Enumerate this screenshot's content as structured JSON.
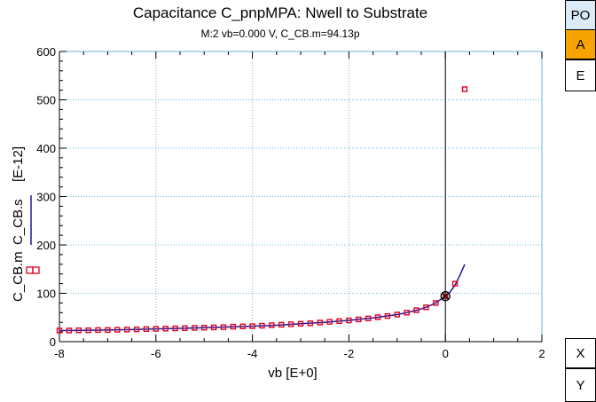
{
  "side_buttons": {
    "po": "PO",
    "a": "A",
    "e": "E",
    "x": "X",
    "y": "Y"
  },
  "colors": {
    "grid": "#6cb4dc",
    "measured": "#e00020",
    "simulated": "#1a1aa0",
    "po_bg": "#dbeaf7",
    "a_bg": "#f7a400"
  },
  "chart_data": {
    "type": "scatter",
    "title": "Capacitance C_pnpMPA: Nwell to Substrate",
    "subtitle": "M:2 vb=0.000  V, C_CB.m=94.13p",
    "xlabel": "vb  [E+0]",
    "ylabel_parts": {
      "measured": "C_CB.m",
      "simulated": "C_CB.s",
      "unit": "[E-12]"
    },
    "xlim": [
      -8,
      2
    ],
    "ylim": [
      0,
      600
    ],
    "xticks": [
      "-8",
      "-6",
      "-4",
      "-2",
      "0",
      "2"
    ],
    "yticks": [
      "0",
      "100",
      "200",
      "300",
      "400",
      "500",
      "600"
    ],
    "grid": true,
    "marker_point": {
      "x": 0,
      "y": 94.13
    },
    "series": [
      {
        "name": "C_CB.m",
        "style": "square-markers",
        "x": [
          -8,
          -7.8,
          -7.6,
          -7.4,
          -7.2,
          -7,
          -6.8,
          -6.6,
          -6.4,
          -6.2,
          -6,
          -5.8,
          -5.6,
          -5.4,
          -5.2,
          -5,
          -4.8,
          -4.6,
          -4.4,
          -4.2,
          -4,
          -3.8,
          -3.6,
          -3.4,
          -3.2,
          -3,
          -2.8,
          -2.6,
          -2.4,
          -2.2,
          -2,
          -1.8,
          -1.6,
          -1.4,
          -1.2,
          -1,
          -0.8,
          -0.6,
          -0.4,
          -0.2,
          0,
          0.2,
          0.4
        ],
        "y": [
          23,
          23,
          23.5,
          23.5,
          24,
          24,
          24.5,
          25,
          25.5,
          26,
          26.5,
          27,
          27.5,
          28,
          28.5,
          29,
          29.5,
          30,
          31,
          31.5,
          32,
          33,
          34,
          35,
          36,
          37,
          38,
          39.5,
          41,
          42.5,
          44,
          46,
          48,
          50.5,
          53,
          56,
          60,
          65,
          71,
          80,
          94,
          120,
          522
        ]
      },
      {
        "name": "C_CB.s",
        "style": "line",
        "x": [
          -8,
          -7.5,
          -7,
          -6.5,
          -6,
          -5.5,
          -5,
          -4.5,
          -4,
          -3.5,
          -3,
          -2.5,
          -2,
          -1.5,
          -1,
          -0.8,
          -0.6,
          -0.4,
          -0.2,
          0,
          0.1,
          0.2,
          0.3,
          0.4
        ],
        "y": [
          23,
          23.5,
          24,
          25,
          26.5,
          27.5,
          29,
          30.5,
          32,
          34,
          37,
          40,
          44,
          49,
          56,
          60,
          65,
          71,
          80,
          94,
          103,
          117,
          137,
          160
        ]
      }
    ]
  }
}
